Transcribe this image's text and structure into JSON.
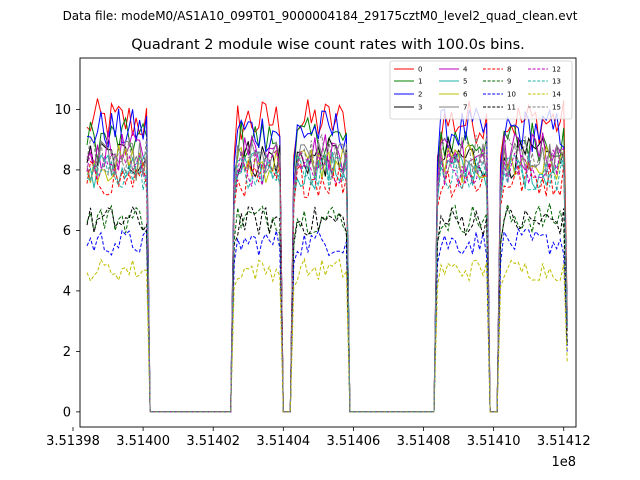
{
  "chart_data": {
    "type": "line",
    "suptitle": "Data file: modeM0/AS1A10_099T01_9000004184_29175cztM0_level2_quad_clean.evt",
    "title": "Quadrant 2 module wise count rates with 100.0s bins.",
    "xlabel": "",
    "ylabel": "",
    "x_offset_label": "1e8",
    "xlim": [
      3.513982,
      3.5141235
    ],
    "ylim": [
      -0.5,
      11.7
    ],
    "x_ticks": [
      3.51398,
      3.514,
      3.51402,
      3.51404,
      3.51406,
      3.51408,
      3.5141,
      3.51412
    ],
    "x_tick_labels": [
      "3.51398",
      "3.51400",
      "3.51402",
      "3.51404",
      "3.51406",
      "3.51408",
      "3.51410",
      "3.51412"
    ],
    "y_ticks": [
      0,
      2,
      4,
      6,
      8,
      10
    ],
    "y_tick_labels": [
      "0",
      "2",
      "4",
      "6",
      "8",
      "10"
    ],
    "x_start": 3.513984,
    "x_step": 1e-06,
    "n_points": 138,
    "segments": [
      {
        "start": 0,
        "end": 17
      },
      {
        "start": 42,
        "end": 55
      },
      {
        "start": 59,
        "end": 74
      },
      {
        "start": 100,
        "end": 114
      },
      {
        "start": 118,
        "end": 137
      }
    ],
    "legend_position": "top-right",
    "series": [
      {
        "name": "0",
        "level": 9.6,
        "color": "#ff0000",
        "dash": "solid"
      },
      {
        "name": "1",
        "level": 9.0,
        "color": "#008000",
        "dash": "solid"
      },
      {
        "name": "2",
        "level": 9.3,
        "color": "#0000ff",
        "dash": "solid"
      },
      {
        "name": "3",
        "level": 8.4,
        "color": "#000000",
        "dash": "solid"
      },
      {
        "name": "4",
        "level": 8.6,
        "color": "#bf00bf",
        "dash": "solid"
      },
      {
        "name": "5",
        "level": 8.0,
        "color": "#20b2aa",
        "dash": "solid"
      },
      {
        "name": "6",
        "level": 8.2,
        "color": "#bfbf00",
        "dash": "solid"
      },
      {
        "name": "7",
        "level": 8.3,
        "color": "#808080",
        "dash": "solid"
      },
      {
        "name": "8",
        "level": 7.7,
        "color": "#ff0000",
        "dash": "dashed"
      },
      {
        "name": "9",
        "level": 6.4,
        "color": "#006400",
        "dash": "dashed"
      },
      {
        "name": "10",
        "level": 5.6,
        "color": "#0000ff",
        "dash": "dashed"
      },
      {
        "name": "11",
        "level": 6.3,
        "color": "#000000",
        "dash": "dashed"
      },
      {
        "name": "12",
        "level": 8.1,
        "color": "#bf00bf",
        "dash": "dashed"
      },
      {
        "name": "13",
        "level": 7.9,
        "color": "#20b2aa",
        "dash": "dashed"
      },
      {
        "name": "14",
        "level": 4.7,
        "color": "#bfbf00",
        "dash": "dashed"
      },
      {
        "name": "15",
        "level": 8.5,
        "color": "#808080",
        "dash": "dashed"
      }
    ]
  }
}
